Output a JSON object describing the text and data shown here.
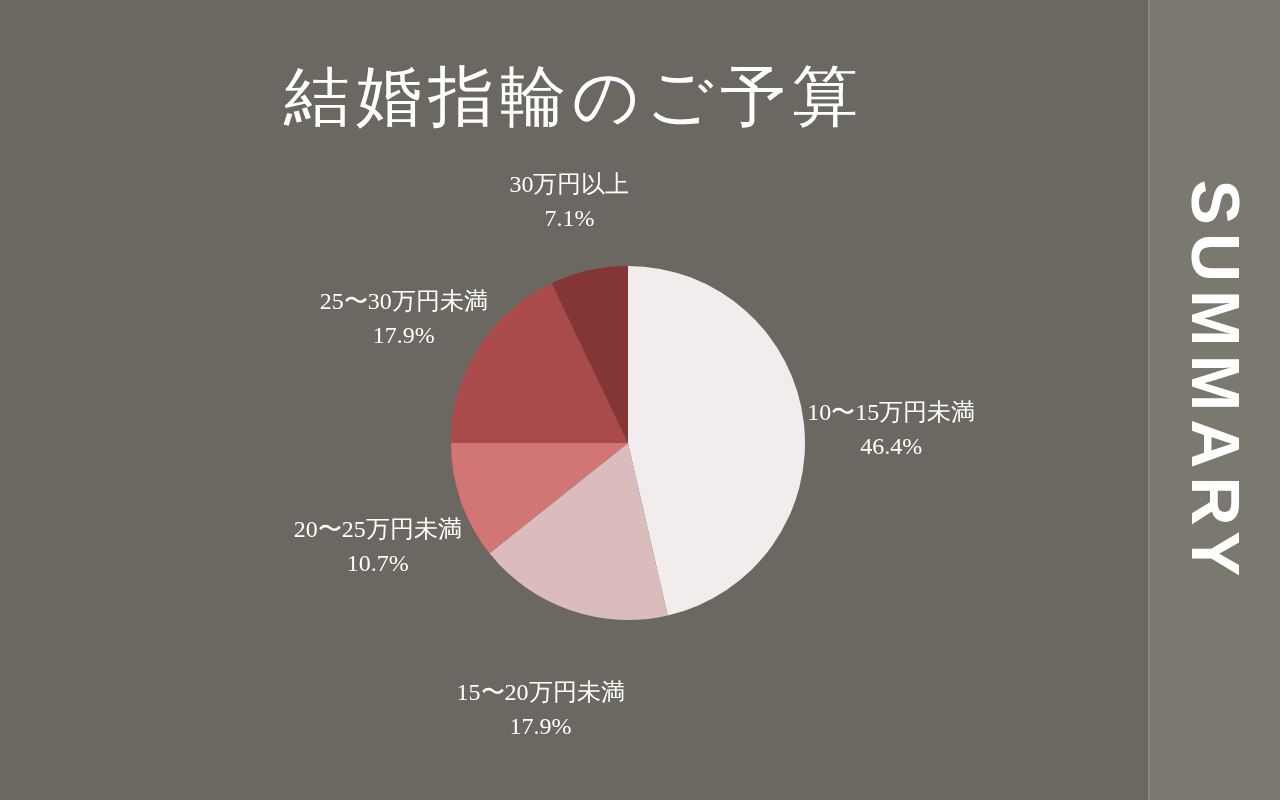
{
  "chart_data": {
    "type": "pie",
    "title": "結婚指輪のご予算",
    "categories": [
      "10〜15万円未満",
      "15〜20万円未満",
      "20〜25万円未満",
      "25〜30万円未満",
      "30万円以上"
    ],
    "values": [
      46.4,
      17.9,
      10.7,
      17.9,
      7.1
    ],
    "colors": [
      "#f2ecec",
      "#dbbcbd",
      "#d27575",
      "#ab4a4a",
      "#843535"
    ],
    "value_labels": [
      "46.4%",
      "17.9%",
      "10.7%",
      "17.9%",
      "7.1%"
    ],
    "legend": false,
    "annotations": [
      "SUMMARY"
    ]
  }
}
